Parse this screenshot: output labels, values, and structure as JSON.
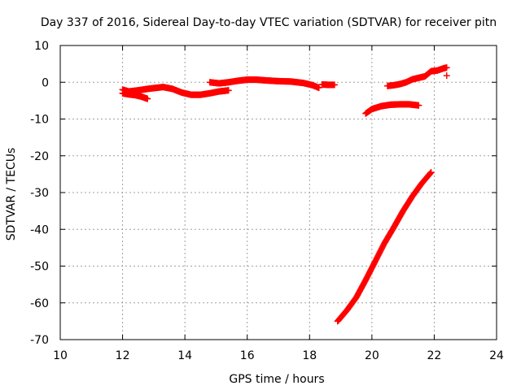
{
  "chart_data": {
    "type": "scatter",
    "title": "Day 337 of 2016, Sidereal Day-to-day VTEC variation (SDTVAR) for receiver pitn",
    "xlabel": "GPS time / hours",
    "ylabel": "SDTVAR / TECUs",
    "xlim": [
      10,
      24
    ],
    "ylim": [
      -70,
      10
    ],
    "xticks": [
      10,
      12,
      14,
      16,
      18,
      20,
      22,
      24
    ],
    "yticks": [
      10,
      0,
      -10,
      -20,
      -30,
      -40,
      -50,
      -60,
      -70
    ],
    "grid": true,
    "marker": "+",
    "color": "#ff0000",
    "series": [
      {
        "segments": [
          {
            "x": [
              12.0,
              12.2,
              12.5,
              12.8,
              13.0,
              13.3,
              13.6,
              13.9,
              14.2,
              14.5,
              14.8,
              15.1,
              15.4
            ],
            "y": [
              -2.0,
              -2.5,
              -2.2,
              -1.8,
              -1.6,
              -1.3,
              -1.8,
              -2.8,
              -3.4,
              -3.4,
              -3.0,
              -2.5,
              -2.2
            ]
          },
          {
            "x": [
              12.0,
              12.2,
              12.4,
              12.6,
              12.8
            ],
            "y": [
              -3.0,
              -3.3,
              -3.5,
              -3.9,
              -4.5
            ]
          },
          {
            "x": [
              14.8,
              15.1,
              15.4,
              15.7,
              16.0,
              16.3,
              16.6,
              17.0,
              17.4,
              17.8,
              18.1,
              18.3
            ],
            "y": [
              0.0,
              -0.3,
              0.0,
              0.4,
              0.7,
              0.7,
              0.5,
              0.3,
              0.2,
              -0.2,
              -0.8,
              -1.5
            ]
          },
          {
            "x": [
              18.4,
              18.6,
              18.8
            ],
            "y": [
              -0.6,
              -0.7,
              -0.7
            ]
          },
          {
            "x": [
              19.8,
              20.0,
              20.3,
              20.6,
              20.9,
              21.2,
              21.5
            ],
            "y": [
              -8.5,
              -7.3,
              -6.5,
              -6.1,
              -6.0,
              -6.0,
              -6.3
            ]
          },
          {
            "x": [
              20.5,
              20.7,
              20.9,
              21.1,
              21.3,
              21.5,
              21.7,
              21.9,
              22.1,
              22.3,
              22.4
            ],
            "y": [
              -1.0,
              -0.8,
              -0.5,
              0.0,
              0.8,
              1.2,
              1.6,
              3.0,
              3.2,
              3.8,
              4.0
            ]
          },
          {
            "x": [
              18.9,
              19.2,
              19.5,
              19.8,
              20.1,
              20.4,
              20.7,
              21.0,
              21.3,
              21.6,
              21.9
            ],
            "y": [
              -65.0,
              -62.0,
              -58.5,
              -53.8,
              -48.8,
              -43.8,
              -39.5,
              -35.0,
              -31.0,
              -27.5,
              -24.5
            ]
          }
        ],
        "isolated_points": [
          {
            "x": 22.4,
            "y": 1.8
          }
        ]
      }
    ]
  }
}
